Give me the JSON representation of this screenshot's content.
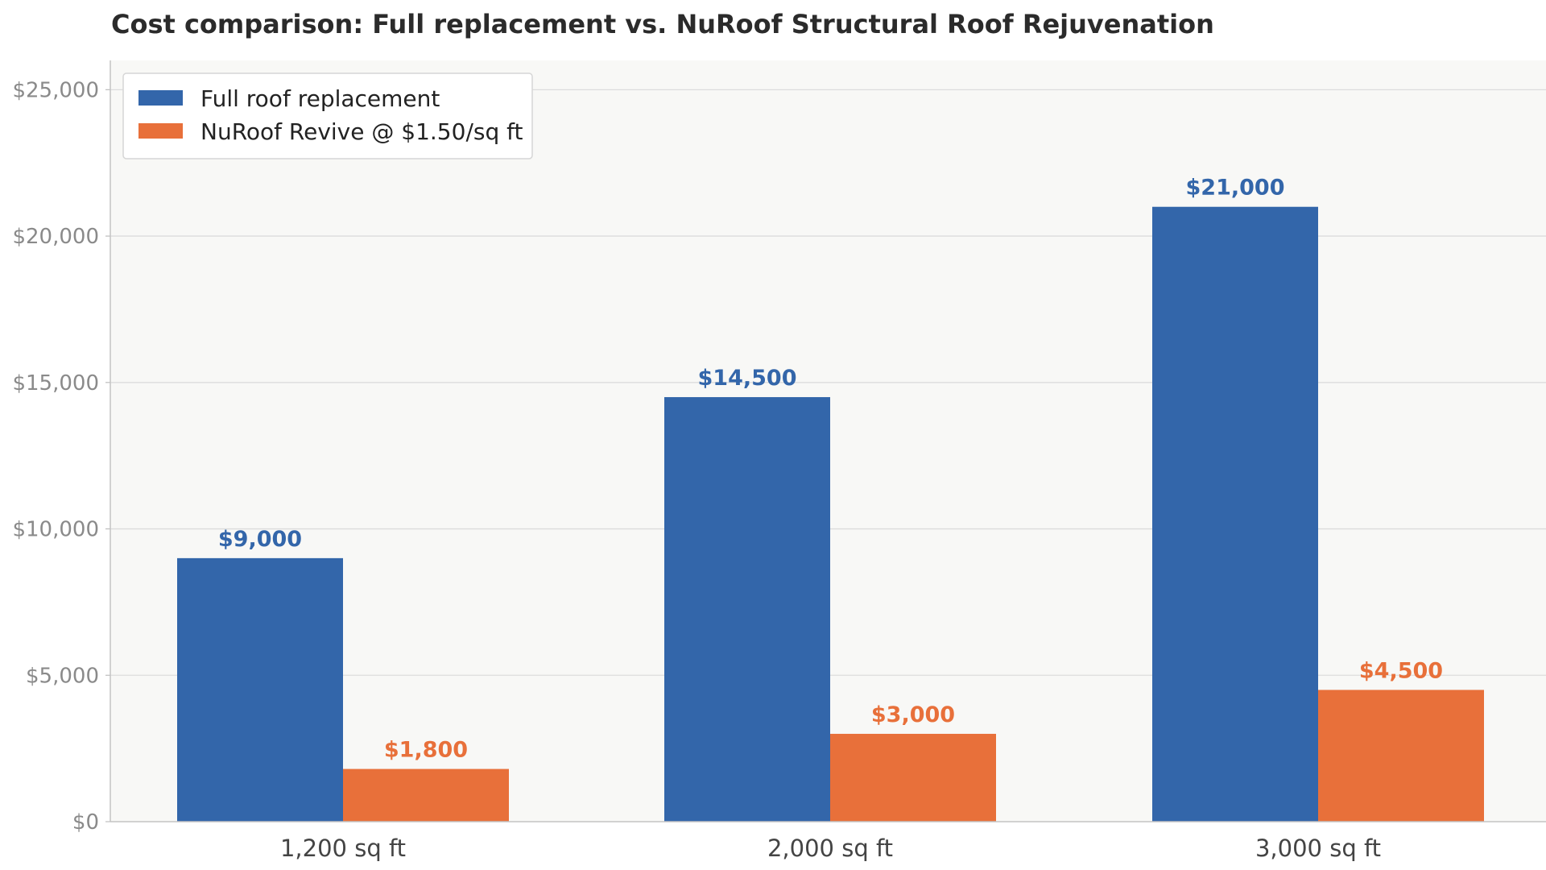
{
  "colors": {
    "full_replacement": "#3366aa",
    "nuroof_revive": "#e8703a",
    "plot_background": "#f8f8f6",
    "gridline": "#dcdcdc"
  },
  "chart_data": {
    "type": "bar",
    "title": "Cost comparison: Full replacement vs. NuRoof Structural Roof Rejuvenation",
    "xlabel": "",
    "ylabel": "",
    "categories": [
      "1,200 sq ft",
      "2,000 sq ft",
      "3,000 sq ft"
    ],
    "series": [
      {
        "name": "Full roof replacement",
        "values": [
          9000,
          14500,
          21000
        ],
        "labels": [
          "$9,000",
          "$14,500",
          "$21,000"
        ]
      },
      {
        "name": "NuRoof Revive @ $1.50/sq ft",
        "values": [
          1800,
          3000,
          4500
        ],
        "labels": [
          "$1,800",
          "$3,000",
          "$4,500"
        ]
      }
    ],
    "ylim": [
      0,
      26000
    ],
    "yticks": [
      0,
      5000,
      10000,
      15000,
      20000,
      25000
    ],
    "ytick_labels": [
      "$0",
      "$5,000",
      "$10,000",
      "$15,000",
      "$20,000",
      "$25,000"
    ],
    "grid": true,
    "legend_position": "top-left"
  }
}
